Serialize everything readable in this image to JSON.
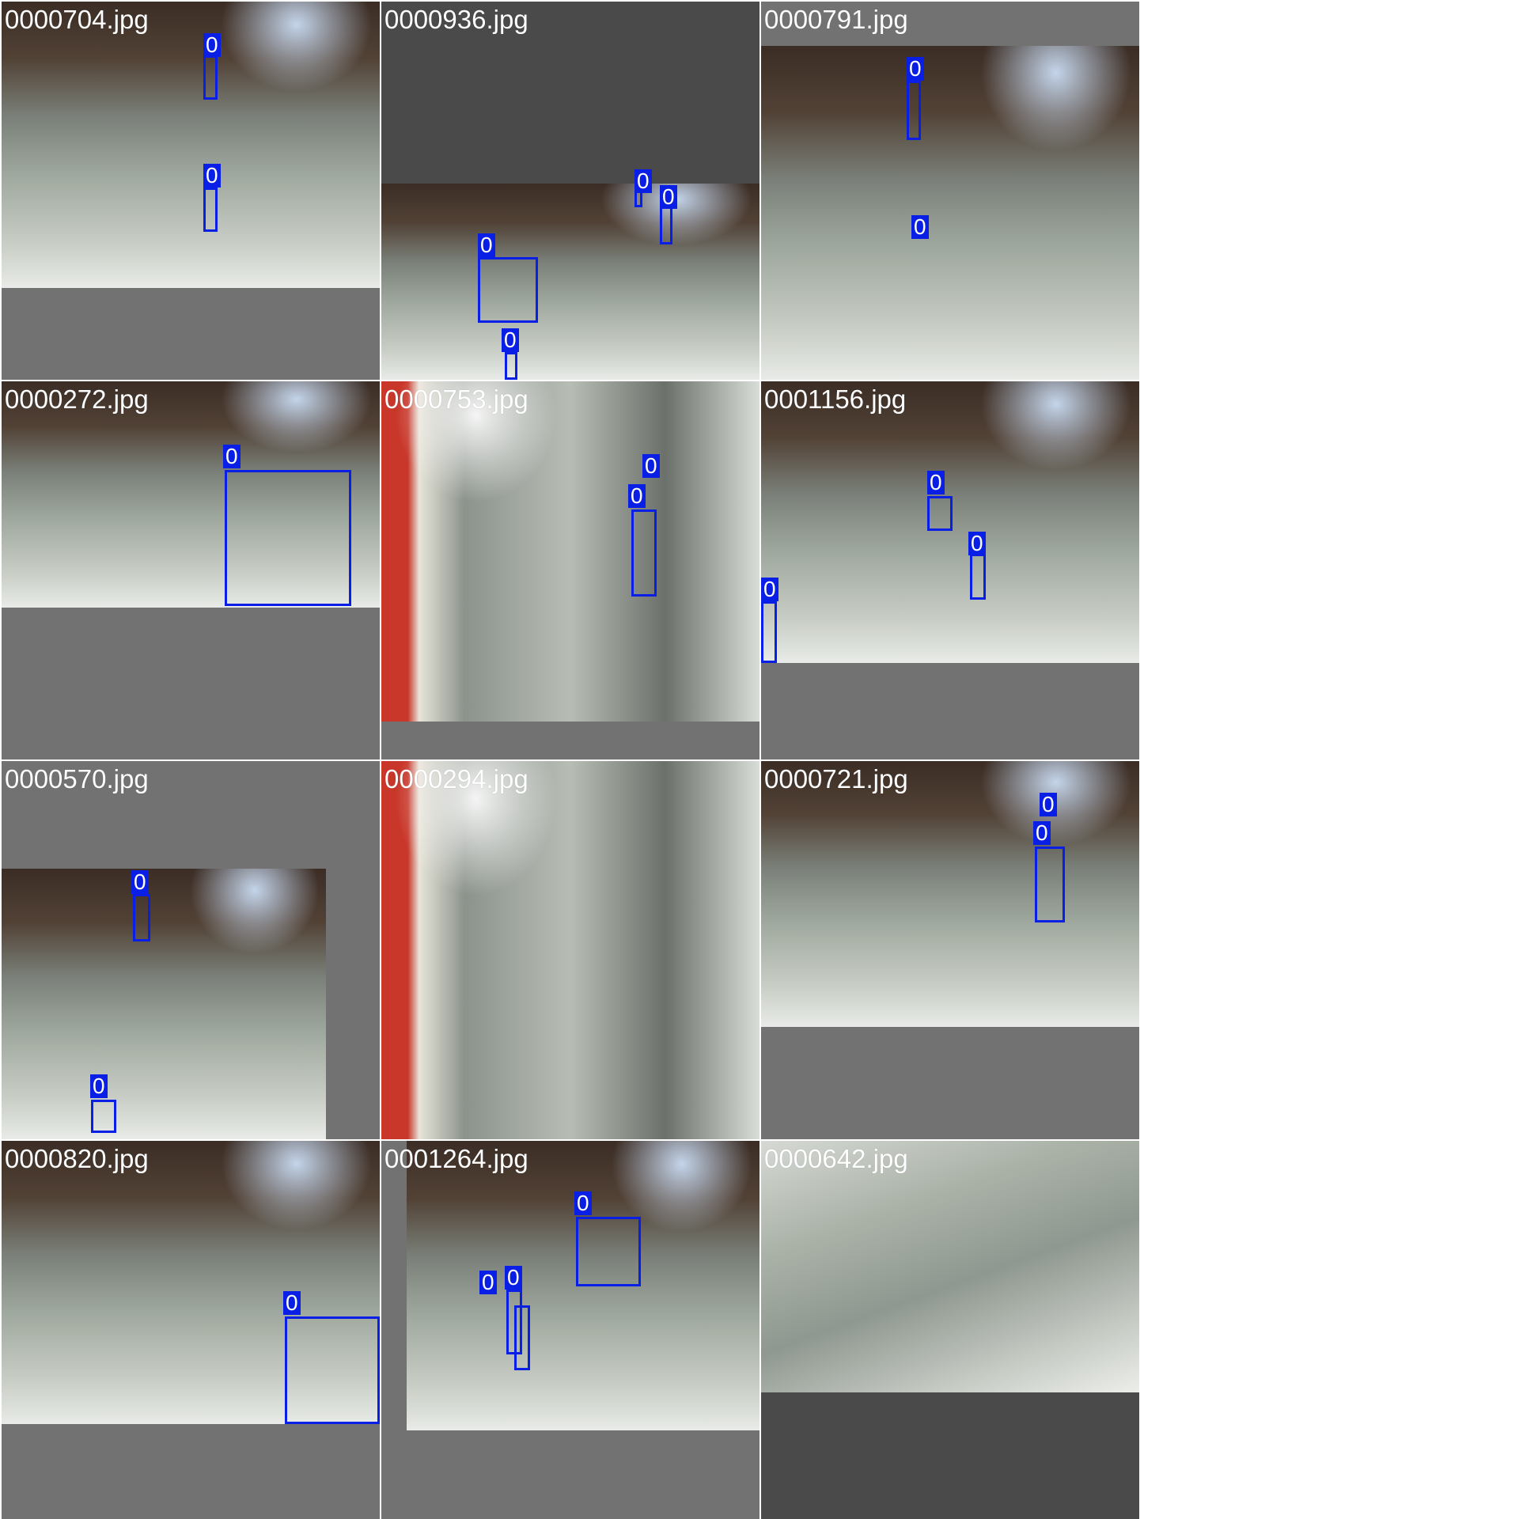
{
  "mosaic": {
    "box_color": "#0a1fe6",
    "cells": [
      {
        "filename": "0000704.jpg"
      },
      {
        "filename": "0000936.jpg"
      },
      {
        "filename": "0000791.jpg"
      },
      {
        "filename": "0000272.jpg"
      },
      {
        "filename": "0000753.jpg"
      },
      {
        "filename": "0001156.jpg"
      },
      {
        "filename": "0000570.jpg"
      },
      {
        "filename": "0000294.jpg"
      },
      {
        "filename": "0000721.jpg"
      },
      {
        "filename": "0000820.jpg"
      },
      {
        "filename": "0001264.jpg"
      },
      {
        "filename": "0000642.jpg"
      }
    ],
    "box_label": "0"
  }
}
